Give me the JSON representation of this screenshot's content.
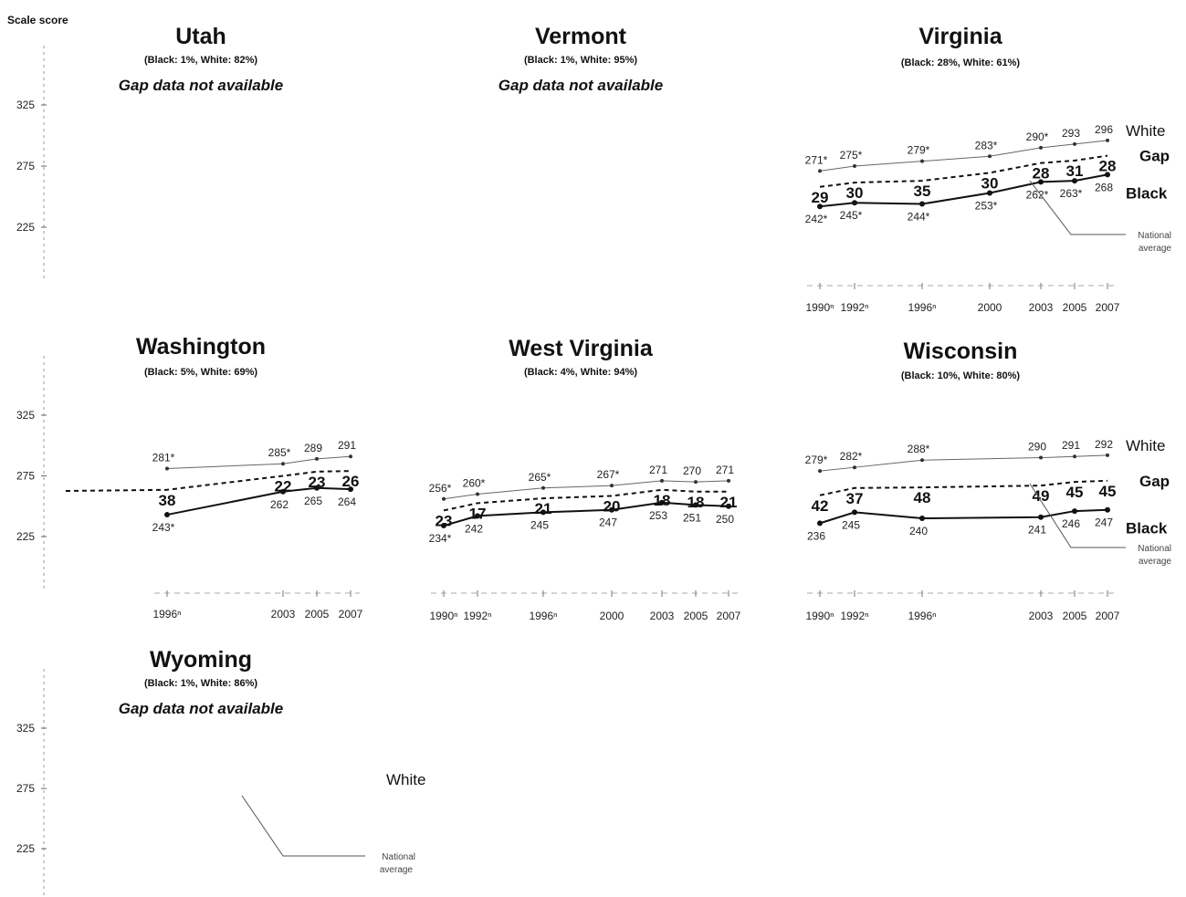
{
  "figure": {
    "ylabel": "Scale score"
  },
  "chart_data": [
    {
      "type": "line",
      "state": "Utah",
      "subtitle": "(Black: 1%, White: 82%)",
      "note": "Gap data not available",
      "yticks": [
        "325",
        "275",
        "225"
      ],
      "ylim": [
        175,
        375
      ],
      "series": []
    },
    {
      "type": "line",
      "state": "Vermont",
      "subtitle": "(Black: 1%, White: 95%)",
      "note": "Gap data not available",
      "yticks": [],
      "ylim": [
        175,
        375
      ],
      "series": []
    },
    {
      "type": "line",
      "state": "Virginia",
      "subtitle": "(Black: 28%, White: 61%)",
      "yticks": [],
      "ylim": [
        175,
        375
      ],
      "x": [
        "1990",
        "1992",
        "1996",
        "2000",
        "2003",
        "2005",
        "2007"
      ],
      "xtick_labels": [
        "1990ⁿ",
        "1992ⁿ",
        "1996ⁿ",
        "2000",
        "2003",
        "2005",
        "2007"
      ],
      "series": [
        {
          "name": "White",
          "values": [
            271,
            275,
            279,
            283,
            290,
            293,
            296
          ],
          "labels": [
            "271*",
            "275*",
            "279*",
            "283*",
            "290*",
            "293",
            "296"
          ]
        },
        {
          "name": "Black",
          "values": [
            242,
            245,
            244,
            253,
            262,
            263,
            268
          ],
          "labels": [
            "242*",
            "245*",
            "244*",
            "253*",
            "262*",
            "263*",
            "268"
          ]
        }
      ],
      "gap": {
        "name": "Gap",
        "values": [
          29,
          30,
          35,
          30,
          28,
          31,
          28
        ]
      },
      "annotation": "National average",
      "series_names": [
        "White",
        "Gap",
        "Black"
      ]
    },
    {
      "type": "line",
      "state": "Washington",
      "subtitle": "(Black: 5%, White: 69%)",
      "yticks": [
        "325",
        "275",
        "225"
      ],
      "ylim": [
        175,
        375
      ],
      "x": [
        "1996",
        "2003",
        "2005",
        "2007"
      ],
      "xtick_labels": [
        "1996ⁿ",
        "2003",
        "2005",
        "2007"
      ],
      "series": [
        {
          "name": "White",
          "values": [
            281,
            285,
            289,
            291
          ],
          "labels": [
            "281*",
            "285*",
            "289",
            "291"
          ]
        },
        {
          "name": "Black",
          "values": [
            243,
            262,
            265,
            264
          ],
          "labels": [
            "243*",
            "262",
            "265",
            "264"
          ]
        }
      ],
      "gap": {
        "name": "Gap",
        "values": [
          38,
          22,
          23,
          26
        ]
      }
    },
    {
      "type": "line",
      "state": "West Virginia",
      "subtitle": "(Black: 4%, White: 94%)",
      "yticks": [],
      "ylim": [
        175,
        375
      ],
      "x": [
        "1990",
        "1992",
        "1996",
        "2000",
        "2003",
        "2005",
        "2007"
      ],
      "xtick_labels": [
        "1990ⁿ",
        "1992ⁿ",
        "1996ⁿ",
        "2000",
        "2003",
        "2005",
        "2007"
      ],
      "series": [
        {
          "name": "White",
          "values": [
            256,
            260,
            265,
            267,
            271,
            270,
            271
          ],
          "labels": [
            "256*",
            "260*",
            "265*",
            "267*",
            "271",
            "270",
            "271"
          ]
        },
        {
          "name": "Black",
          "values": [
            234,
            242,
            245,
            247,
            253,
            251,
            250
          ],
          "labels": [
            "234*",
            "242",
            "245",
            "247",
            "253",
            "251",
            "250"
          ]
        }
      ],
      "gap": {
        "name": "Gap",
        "values": [
          23,
          17,
          21,
          20,
          18,
          18,
          21
        ]
      }
    },
    {
      "type": "line",
      "state": "Wisconsin",
      "subtitle": "(Black: 10%, White: 80%)",
      "yticks": [],
      "ylim": [
        175,
        375
      ],
      "x": [
        "1990",
        "1992",
        "1996",
        "2003",
        "2005",
        "2007"
      ],
      "xtick_labels": [
        "1990ⁿ",
        "1992ⁿ",
        "1996ⁿ",
        "2003",
        "2005",
        "2007"
      ],
      "series": [
        {
          "name": "White",
          "values": [
            279,
            282,
            288,
            290,
            291,
            292
          ],
          "labels": [
            "279*",
            "282*",
            "288*",
            "290",
            "291",
            "292"
          ]
        },
        {
          "name": "Black",
          "values": [
            236,
            245,
            240,
            241,
            246,
            247
          ],
          "labels": [
            "236",
            "245",
            "240",
            "241",
            "246",
            "247"
          ]
        }
      ],
      "gap": {
        "name": "Gap",
        "values": [
          42,
          37,
          48,
          49,
          45,
          45
        ]
      },
      "annotation": "National average",
      "series_names": [
        "White",
        "Gap",
        "Black"
      ]
    },
    {
      "type": "line",
      "state": "Wyoming",
      "subtitle": "(Black: 1%, White: 86%)",
      "note": "Gap data not available",
      "yticks": [
        "325",
        "275",
        "225"
      ],
      "ylim": [
        175,
        375
      ],
      "series": [],
      "legend_text": "White",
      "annotation": "National average"
    }
  ]
}
